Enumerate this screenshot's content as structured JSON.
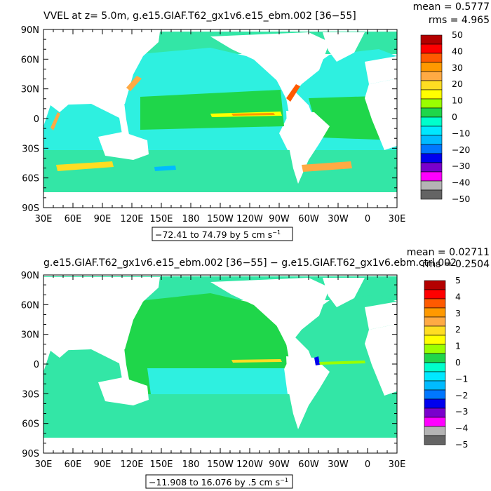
{
  "panels": [
    {
      "title": "VVEL at z=    5.0m, g.e15.GIAF.T62_gx1v6.e15_ebm.002 [36−55]",
      "mean_label": "mean = 0.5777",
      "rms_label": "rms = 4.965",
      "range_label": "−72.41 to 74.79 by 5 cm s",
      "range_unit_exp": "−1",
      "colorbar_ticks": [
        "50",
        "40",
        "30",
        "20",
        "10",
        "0",
        "−10",
        "−20",
        "−30",
        "−40",
        "−50"
      ]
    },
    {
      "title": "g.e15.GIAF.T62_gx1v6.e15_ebm.002 [36−55] − g.e15.GIAF.T62_gx1v6.ebm.ctrl.002",
      "mean_label": "mean = 0.02711",
      "rms_label": "rms = 0.2504",
      "range_label": "−11.908 to 16.076 by .5 cm s",
      "range_unit_exp": "−1",
      "colorbar_ticks": [
        "5",
        "4",
        "3",
        "2",
        "1",
        "0",
        "−1",
        "−2",
        "−3",
        "−4",
        "−5"
      ]
    }
  ],
  "lat_labels": [
    "90N",
    "60N",
    "30N",
    "0",
    "30S",
    "60S",
    "90S"
  ],
  "lon_labels": [
    "30E",
    "60E",
    "90E",
    "120E",
    "150E",
    "180",
    "150W",
    "120W",
    "90W",
    "60W",
    "30W",
    "0",
    "30E"
  ],
  "colors": {
    "ocean_base": "#33e6a6",
    "ocean_cyan": "#2ef0e0",
    "land": "#ffffff",
    "palette": [
      "#b40000",
      "#ff0000",
      "#ff5a00",
      "#ff9900",
      "#ffaa44",
      "#ffdd22",
      "#ffff00",
      "#9aff00",
      "#1fd64a",
      "#00ffcc",
      "#00e8ff",
      "#00bbff",
      "#0077ff",
      "#0000ee",
      "#7a00cc",
      "#ff00ff",
      "#b4b4b4",
      "#646464"
    ]
  }
}
